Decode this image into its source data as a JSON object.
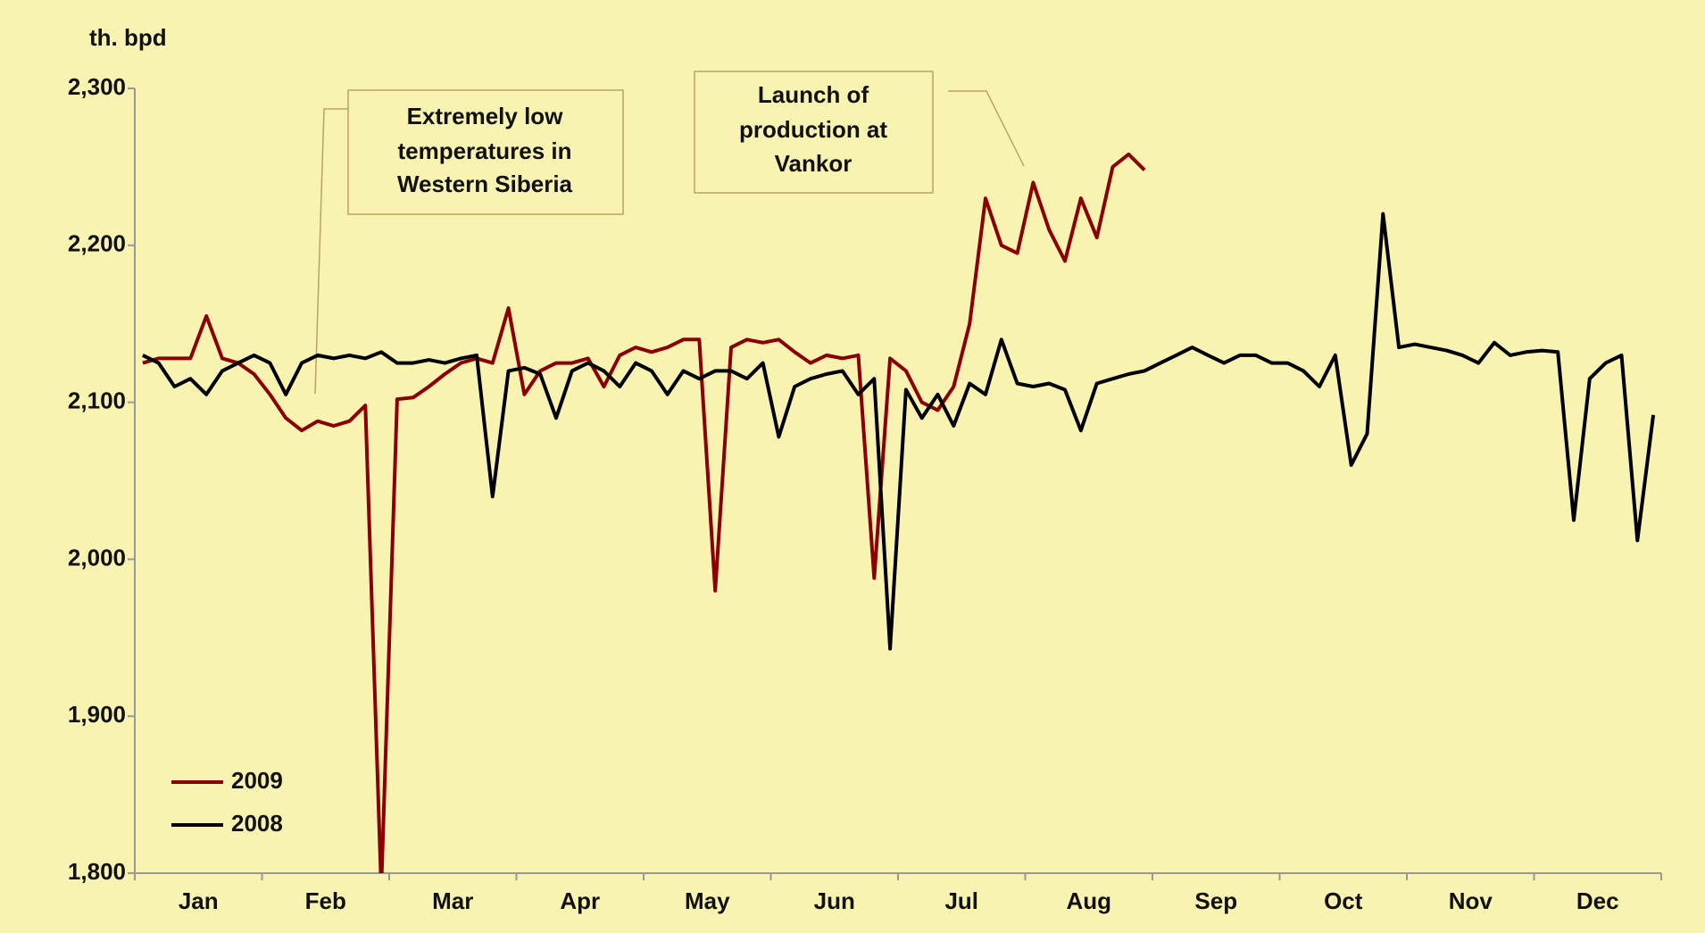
{
  "chart_data": {
    "type": "line",
    "y_label": "th. bpd",
    "categories": [
      null,
      null,
      null,
      null,
      "Jan",
      null,
      null,
      null,
      null,
      null,
      null,
      null,
      "Feb",
      null,
      null,
      null,
      null,
      null,
      null,
      null,
      "Mar",
      null,
      null,
      null,
      null,
      null,
      null,
      null,
      "Apr",
      null,
      null,
      null,
      null,
      null,
      null,
      null,
      "May",
      null,
      null,
      null,
      null,
      null,
      null,
      null,
      "Jun",
      null,
      null,
      null,
      null,
      null,
      null,
      null,
      "Jul",
      null,
      null,
      null,
      null,
      null,
      null,
      null,
      "Aug",
      null,
      null,
      null,
      null,
      null,
      null,
      null,
      "Sep",
      null,
      null,
      null,
      null,
      null,
      null,
      null,
      "Oct",
      null,
      null,
      null,
      null,
      null,
      null,
      null,
      "Nov",
      null,
      null,
      null,
      null,
      null,
      null,
      null,
      "Dec",
      null,
      null,
      null
    ],
    "series": [
      {
        "name": "2009",
        "color": "#8b0000",
        "values": [
          2125,
          2128,
          2128,
          2128,
          2155,
          2128,
          2125,
          2118,
          2105,
          2090,
          2082,
          2088,
          2085,
          2088,
          2098,
          1790,
          2102,
          2103,
          2110,
          2118,
          2125,
          2128,
          2125,
          2160,
          2105,
          2120,
          2125,
          2125,
          2128,
          2110,
          2130,
          2135,
          2132,
          2135,
          2140,
          2140,
          1980,
          2135,
          2140,
          2138,
          2140,
          2132,
          2125,
          2130,
          2128,
          2130,
          1988,
          2128,
          2120,
          2100,
          2095,
          2110,
          2150,
          2230,
          2200,
          2195,
          2240,
          2210,
          2190,
          2230,
          2205,
          2250,
          2258,
          2248,
          null,
          null,
          null,
          null,
          null,
          null,
          null,
          null,
          null,
          null,
          null,
          null,
          null,
          null,
          null,
          null,
          null,
          null,
          null,
          null,
          null,
          null,
          null,
          null,
          null,
          null,
          null,
          null,
          null,
          null,
          null,
          null
        ]
      },
      {
        "name": "2008",
        "color": "#000000",
        "values": [
          2130,
          2125,
          2110,
          2115,
          2105,
          2120,
          2125,
          2130,
          2125,
          2105,
          2125,
          2130,
          2128,
          2130,
          2128,
          2132,
          2125,
          2125,
          2127,
          2125,
          2128,
          2130,
          2040,
          2120,
          2122,
          2118,
          2090,
          2120,
          2125,
          2120,
          2110,
          2125,
          2120,
          2105,
          2120,
          2115,
          2120,
          2120,
          2115,
          2125,
          2078,
          2110,
          2115,
          2118,
          2120,
          2105,
          2115,
          1943,
          2108,
          2090,
          2105,
          2085,
          2112,
          2105,
          2140,
          2112,
          2110,
          2112,
          2108,
          2082,
          2112,
          2115,
          2118,
          2120,
          2125,
          2130,
          2135,
          2130,
          2125,
          2130,
          2130,
          2125,
          2125,
          2120,
          2110,
          2130,
          2060,
          2080,
          2220,
          2135,
          2137,
          2135,
          2133,
          2130,
          2125,
          2138,
          2130,
          2132,
          2133,
          2132,
          2025,
          2115,
          2125,
          2130,
          2012,
          2092
        ]
      }
    ],
    "ylim": [
      1800,
      2300
    ],
    "yticks": [
      {
        "value": 1800,
        "label": "1,800"
      },
      {
        "value": 1900,
        "label": "1,900"
      },
      {
        "value": 2000,
        "label": "2,000"
      },
      {
        "value": 2100,
        "label": "2,100"
      },
      {
        "value": 2200,
        "label": "2,200"
      },
      {
        "value": 2300,
        "label": "2,300"
      }
    ],
    "legend": "lower left",
    "annotations": [
      {
        "lines": [
          "Extremely low",
          "temperatures in",
          "Western Siberia"
        ]
      },
      {
        "lines": [
          "Launch of",
          "production at",
          "Vankor"
        ]
      }
    ]
  }
}
